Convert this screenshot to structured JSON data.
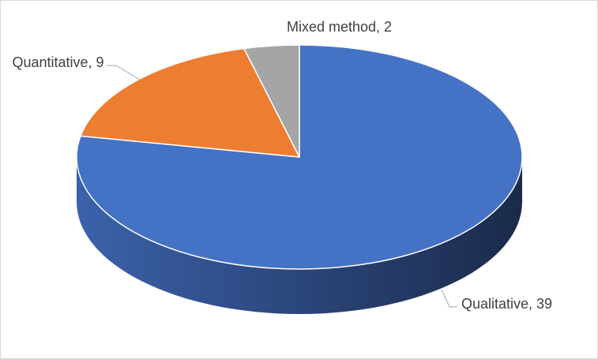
{
  "chart_data": {
    "type": "pie3d",
    "values": [
      39,
      9,
      2
    ],
    "value_labels": [
      "Qualitative, 39",
      "Quantitative, 9",
      "Mixed method, 2"
    ],
    "colors": [
      "#4472c4",
      "#ed7d31",
      "#a5a5a5"
    ]
  }
}
